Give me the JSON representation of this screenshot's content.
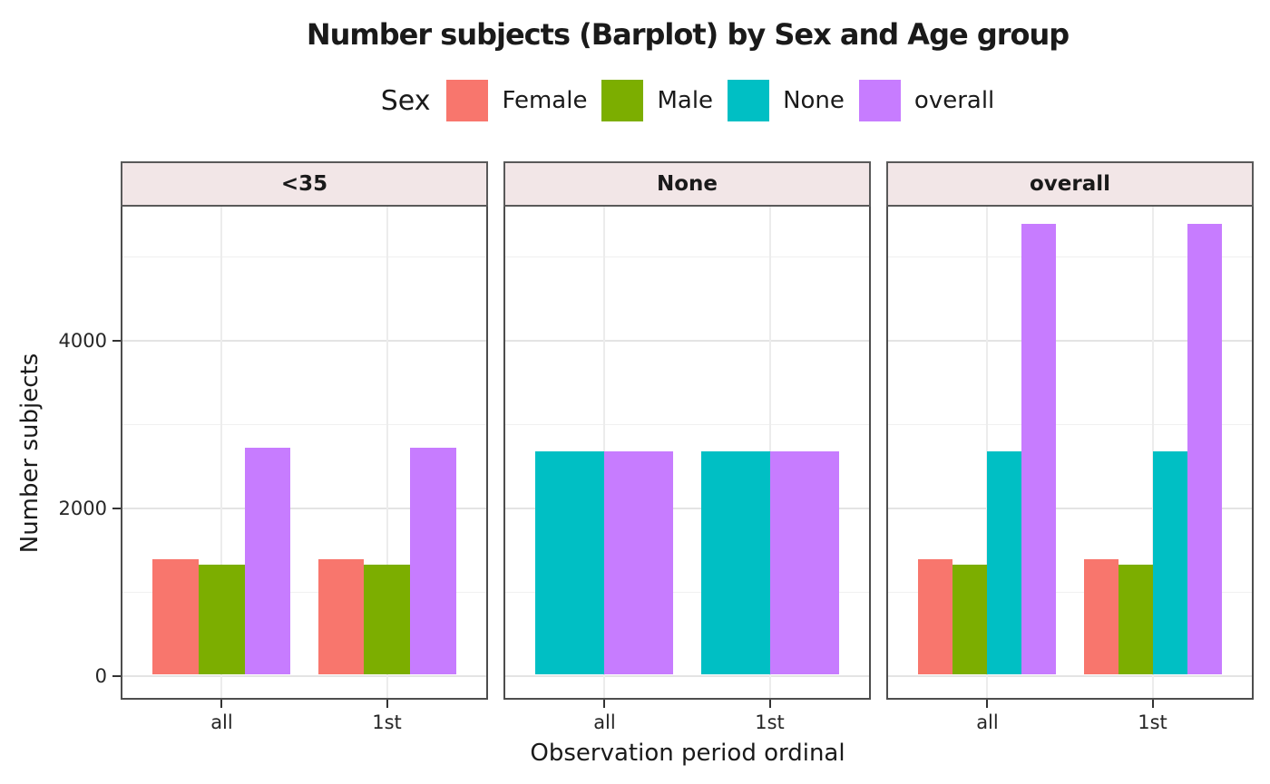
{
  "title": "Number subjects (Barplot) by Sex and Age group",
  "legend": {
    "title": "Sex",
    "entries": [
      {
        "label": "Female",
        "color": "#F8766D"
      },
      {
        "label": "Male",
        "color": "#7CAE00"
      },
      {
        "label": "None",
        "color": "#00BFC4"
      },
      {
        "label": "overall",
        "color": "#C77CFF"
      }
    ]
  },
  "chart_data": {
    "type": "bar",
    "title": "Number subjects (Barplot) by Sex and Age group",
    "xlabel": "Observation period ordinal",
    "ylabel": "Number subjects",
    "group_variable": "Sex",
    "facet_variable": "Age group",
    "legend_position": "top",
    "grid": true,
    "categories": [
      "all",
      "1st"
    ],
    "yticks_major": [
      0,
      2000,
      4000
    ],
    "yticks_minor": [
      1000,
      3000,
      5000
    ],
    "ylim": [
      -280,
      5600
    ],
    "facets": [
      {
        "label": "<35",
        "series": [
          {
            "name": "Female",
            "color": "#F8766D",
            "values": [
              1370,
              1370
            ]
          },
          {
            "name": "Male",
            "color": "#7CAE00",
            "values": [
              1310,
              1310
            ]
          },
          {
            "name": "None",
            "color": "#00BFC4",
            "values": [
              null,
              null
            ]
          },
          {
            "name": "overall",
            "color": "#C77CFF",
            "values": [
              2700,
              2700
            ]
          }
        ]
      },
      {
        "label": "None",
        "series": [
          {
            "name": "Female",
            "color": "#F8766D",
            "values": [
              null,
              null
            ]
          },
          {
            "name": "Male",
            "color": "#7CAE00",
            "values": [
              null,
              null
            ]
          },
          {
            "name": "None",
            "color": "#00BFC4",
            "values": [
              2660,
              2660
            ]
          },
          {
            "name": "overall",
            "color": "#C77CFF",
            "values": [
              2660,
              2660
            ]
          }
        ]
      },
      {
        "label": "overall",
        "series": [
          {
            "name": "Female",
            "color": "#F8766D",
            "values": [
              1370,
              1370
            ]
          },
          {
            "name": "Male",
            "color": "#7CAE00",
            "values": [
              1310,
              1310
            ]
          },
          {
            "name": "None",
            "color": "#00BFC4",
            "values": [
              2660,
              2660
            ]
          },
          {
            "name": "overall",
            "color": "#C77CFF",
            "values": [
              5370,
              5370
            ]
          }
        ]
      }
    ]
  }
}
